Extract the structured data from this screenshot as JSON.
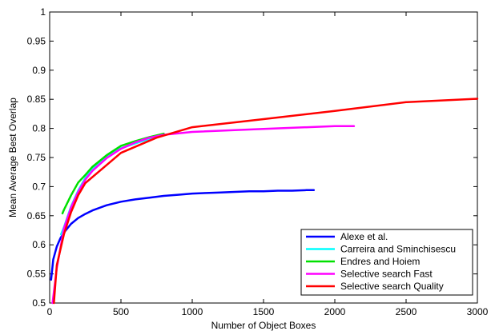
{
  "chart_data": {
    "type": "line",
    "title": "",
    "xlabel": "Number of Object Boxes",
    "ylabel": "Mean Average Best Overlap",
    "xlim": [
      0,
      3000
    ],
    "ylim": [
      0.5,
      1.0
    ],
    "x_ticks": [
      "0",
      "500",
      "1000",
      "1500",
      "2000",
      "2500",
      "3000"
    ],
    "y_ticks": [
      "0.5",
      "0.55",
      "0.6",
      "0.65",
      "0.7",
      "0.75",
      "0.8",
      "0.85",
      "0.9",
      "0.95",
      "1"
    ],
    "grid": false,
    "legend_position": "bottom-right",
    "series": [
      {
        "name": "Alexe et al.",
        "color": "#0000ff",
        "x": [
          10,
          25,
          50,
          75,
          100,
          150,
          200,
          250,
          300,
          400,
          500,
          600,
          700,
          800,
          900,
          1000,
          1100,
          1200,
          1300,
          1400,
          1500,
          1600,
          1700,
          1800,
          1853
        ],
        "y": [
          0.54,
          0.575,
          0.597,
          0.611,
          0.621,
          0.636,
          0.646,
          0.653,
          0.659,
          0.668,
          0.674,
          0.678,
          0.681,
          0.684,
          0.686,
          0.688,
          0.689,
          0.69,
          0.691,
          0.692,
          0.692,
          0.693,
          0.693,
          0.694,
          0.694
        ]
      },
      {
        "name": "Carreira and Sminchisescu",
        "color": "#00ffff",
        "x": [
          80,
          100,
          150,
          200,
          250,
          300,
          400,
          500,
          600,
          700,
          750
        ],
        "y": [
          0.618,
          0.63,
          0.666,
          0.693,
          0.715,
          0.73,
          0.752,
          0.766,
          0.774,
          0.782,
          0.785
        ]
      },
      {
        "name": "Endres and Hoiem",
        "color": "#00e000",
        "x": [
          90,
          100,
          150,
          200,
          250,
          300,
          400,
          500,
          600,
          700,
          800
        ],
        "y": [
          0.654,
          0.66,
          0.685,
          0.707,
          0.72,
          0.734,
          0.754,
          0.77,
          0.778,
          0.785,
          0.791
        ]
      },
      {
        "name": "Selective search Fast",
        "color": "#ff00ff",
        "x": [
          20,
          50,
          100,
          150,
          200,
          250,
          300,
          400,
          500,
          600,
          700,
          800,
          1000,
          1500,
          2000,
          2134
        ],
        "y": [
          0.5,
          0.56,
          0.628,
          0.664,
          0.691,
          0.712,
          0.727,
          0.749,
          0.765,
          0.776,
          0.784,
          0.789,
          0.794,
          0.799,
          0.804,
          0.804
        ]
      },
      {
        "name": "Selective search Quality",
        "color": "#ff0000",
        "x": [
          30,
          50,
          100,
          150,
          200,
          250,
          500,
          750,
          1000,
          1500,
          2000,
          2500,
          3000
        ],
        "y": [
          0.5,
          0.565,
          0.618,
          0.656,
          0.685,
          0.706,
          0.758,
          0.784,
          0.802,
          0.816,
          0.83,
          0.845,
          0.851
        ]
      }
    ]
  }
}
